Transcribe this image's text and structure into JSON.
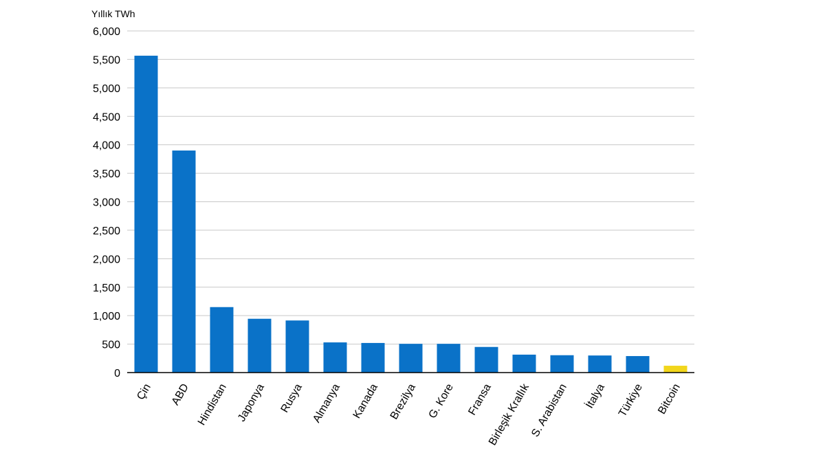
{
  "chart_data": {
    "type": "bar",
    "ylabel": "Yıllık TWh",
    "categories": [
      "Çin",
      "ABD",
      "Hindistan",
      "Japonya",
      "Rusya",
      "Almanya",
      "Kanada",
      "Brezilya",
      "G. Kore",
      "Fransa",
      "Birleşik Krallık",
      "S. Arabistan",
      "İtalya",
      "Türkiye",
      "Bitcoin"
    ],
    "values": [
      5565,
      3900,
      1150,
      945,
      915,
      530,
      520,
      505,
      505,
      450,
      315,
      305,
      300,
      290,
      120
    ],
    "highlight": {
      "category": "Bitcoin",
      "color": "#f2d61c"
    },
    "bar_color": "#0a72c8",
    "ylim": [
      0,
      6000
    ],
    "yticks": [
      0,
      500,
      1000,
      1500,
      2000,
      2500,
      3000,
      3500,
      4000,
      4500,
      5000,
      5500,
      6000
    ],
    "ytick_labels": [
      "0",
      "500",
      "1,000",
      "1,500",
      "2,000",
      "2,500",
      "3,000",
      "3,500",
      "4,000",
      "4,500",
      "5,000",
      "5,500",
      "6,000"
    ],
    "grid": true,
    "legend": "none"
  }
}
